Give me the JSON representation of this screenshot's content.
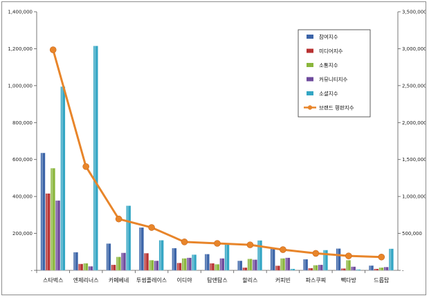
{
  "chart_data": {
    "type": "bar",
    "categories": [
      "스타벅스",
      "엔제리너스",
      "카페베네",
      "투썸플레이스",
      "이디야",
      "탐앤탐스",
      "할리스",
      "커피빈",
      "파스쿠찌",
      "빽다방",
      "드롭탑"
    ],
    "series": [
      {
        "name": "참여지수",
        "axis": "left",
        "color": "#3b64a8",
        "values": [
          636000,
          98000,
          145000,
          232000,
          120000,
          88000,
          52000,
          118000,
          60000,
          118000,
          26000
        ]
      },
      {
        "name": "미디어지수",
        "axis": "left",
        "color": "#b83232",
        "values": [
          416000,
          35000,
          30000,
          93000,
          40000,
          38000,
          15000,
          25000,
          12000,
          10000,
          8000
        ]
      },
      {
        "name": "소통지수",
        "axis": "left",
        "color": "#8ab63c",
        "values": [
          553000,
          38000,
          73000,
          55000,
          65000,
          33000,
          62000,
          65000,
          28000,
          55000,
          15000
        ]
      },
      {
        "name": "커뮤니티지수",
        "axis": "left",
        "color": "#6e4a9c",
        "values": [
          378000,
          22000,
          95000,
          52000,
          68000,
          65000,
          58000,
          68000,
          30000,
          20000,
          18000
        ]
      },
      {
        "name": "소셜지수",
        "axis": "left",
        "color": "#34a6c4",
        "values": [
          995000,
          1215000,
          350000,
          163000,
          85000,
          145000,
          162000,
          8000,
          110000,
          5000,
          117000
        ]
      },
      {
        "name": "브랜드 평판지수",
        "axis": "right",
        "type": "line",
        "color": "#e8852a",
        "values": [
          2985000,
          1405000,
          695000,
          580000,
          385000,
          365000,
          345000,
          280000,
          230000,
          195000,
          180000
        ]
      }
    ],
    "y_left": {
      "min": 0,
      "max": 1400000,
      "ticks": [
        "-",
        "200,000",
        "400,000",
        "600,000",
        "800,000",
        "1,000,000",
        "1,200,000",
        "1,400,000"
      ]
    },
    "y_right": {
      "min": 0,
      "max": 3500000,
      "ticks": [
        "-",
        "500,000",
        "1,000,000",
        "1,500,000",
        "2,000,000",
        "2,500,000",
        "3,000,000",
        "3,500,000"
      ]
    },
    "legend_position": "top-right",
    "grid": false
  }
}
